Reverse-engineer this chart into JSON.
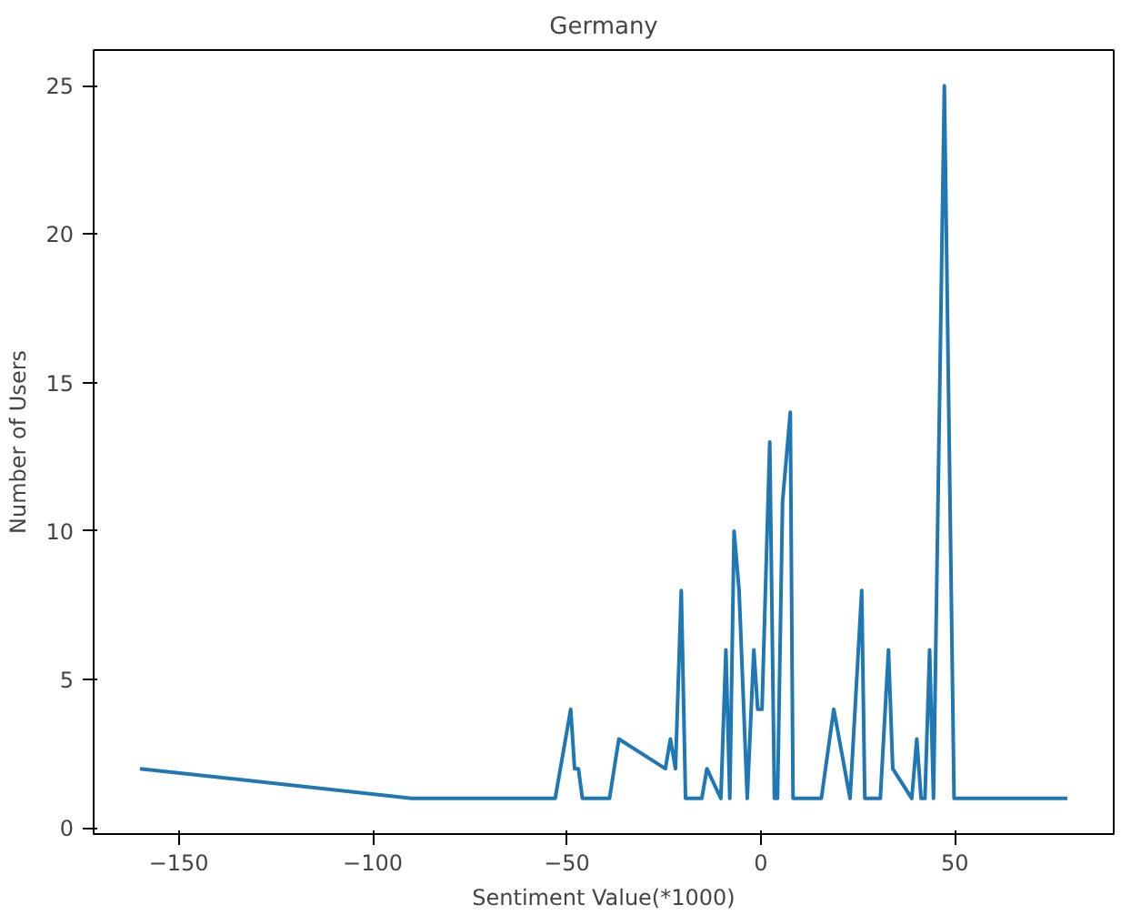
{
  "chart_data": {
    "type": "line",
    "title": "Germany",
    "xlabel": "Sentiment Value(*1000)",
    "ylabel": "Number of Users",
    "x": [
      -160,
      -90,
      -53,
      -49,
      -48,
      -47,
      -46,
      -39,
      -36.6,
      -24.6,
      -23.3,
      -22,
      -20.5,
      -19.4,
      -15.2,
      -13.9,
      -10.3,
      -9,
      -8,
      -6.9,
      -5.6,
      -3.5,
      -1.8,
      -0.8,
      0.3,
      2.3,
      3.5,
      4.3,
      5.6,
      7.6,
      8.3,
      15.6,
      18.8,
      23,
      26,
      26.8,
      30.8,
      32.9,
      34,
      38.9,
      40.2,
      41.3,
      42.3,
      43.5,
      44.5,
      47.3,
      49.8,
      79
    ],
    "series": [
      {
        "color": "#1f77b4",
        "values": [
          2,
          1,
          1,
          4,
          2,
          2,
          1,
          1,
          3,
          2,
          3,
          2,
          8,
          1,
          1,
          2,
          1,
          6,
          1,
          10,
          8,
          1,
          6,
          4,
          4,
          13,
          1,
          1,
          11,
          14,
          1,
          1,
          4,
          1,
          8,
          1,
          1,
          6,
          2,
          1,
          3,
          1,
          1,
          6,
          1,
          25,
          1,
          1
        ]
      }
    ],
    "xlim": [
      -171.95,
      90.95
    ],
    "ylim": [
      -0.2,
      26.2
    ],
    "xticks": [
      -150,
      -100,
      -50,
      0,
      50
    ],
    "yticks": [
      0,
      5,
      10,
      15,
      20,
      25
    ],
    "grid": false
  }
}
